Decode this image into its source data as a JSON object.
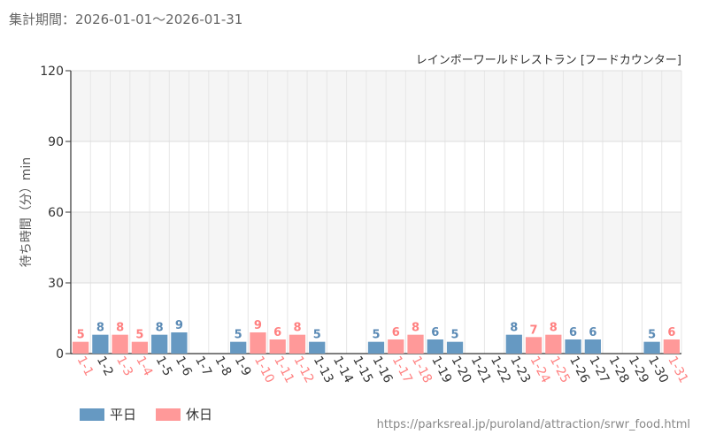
{
  "period_label": "集計期間：2026-01-01〜2026-01-31",
  "source_url": "https://parksreal.jp/puroland/attraction/srwr_food.html",
  "colors": {
    "weekday": "#6699c2",
    "holiday": "#ff9999",
    "holiday_text": "#ff8080",
    "weekday_label_text": "#5a8ab5",
    "tick_text": "#333333"
  },
  "chart_data": {
    "type": "bar",
    "title": "レインボーワールドレストラン [フードカウンター]",
    "xlabel": "",
    "ylabel": "待ち時間（分）min",
    "ylim": [
      0,
      120
    ],
    "yticks": [
      0,
      30,
      60,
      90,
      120
    ],
    "grid": true,
    "legend": [
      {
        "name": "平日",
        "key": "weekday"
      },
      {
        "name": "休日",
        "key": "holiday"
      }
    ],
    "categories": [
      "1-1",
      "1-2",
      "1-3",
      "1-4",
      "1-5",
      "1-6",
      "1-7",
      "1-8",
      "1-9",
      "1-10",
      "1-11",
      "1-12",
      "1-13",
      "1-14",
      "1-15",
      "1-16",
      "1-17",
      "1-18",
      "1-19",
      "1-20",
      "1-21",
      "1-22",
      "1-23",
      "1-24",
      "1-25",
      "1-26",
      "1-27",
      "1-28",
      "1-29",
      "1-30",
      "1-31"
    ],
    "day_types": [
      "holiday",
      "weekday",
      "holiday",
      "holiday",
      "weekday",
      "weekday",
      "weekday",
      "weekday",
      "weekday",
      "holiday",
      "holiday",
      "holiday",
      "weekday",
      "weekday",
      "weekday",
      "weekday",
      "holiday",
      "holiday",
      "weekday",
      "weekday",
      "weekday",
      "weekday",
      "weekday",
      "holiday",
      "holiday",
      "weekday",
      "weekday",
      "weekday",
      "weekday",
      "weekday",
      "holiday"
    ],
    "values": [
      5,
      8,
      8,
      5,
      8,
      9,
      null,
      null,
      5,
      9,
      6,
      8,
      5,
      null,
      null,
      5,
      6,
      8,
      6,
      5,
      null,
      null,
      8,
      7,
      8,
      6,
      6,
      null,
      null,
      5,
      6
    ]
  }
}
